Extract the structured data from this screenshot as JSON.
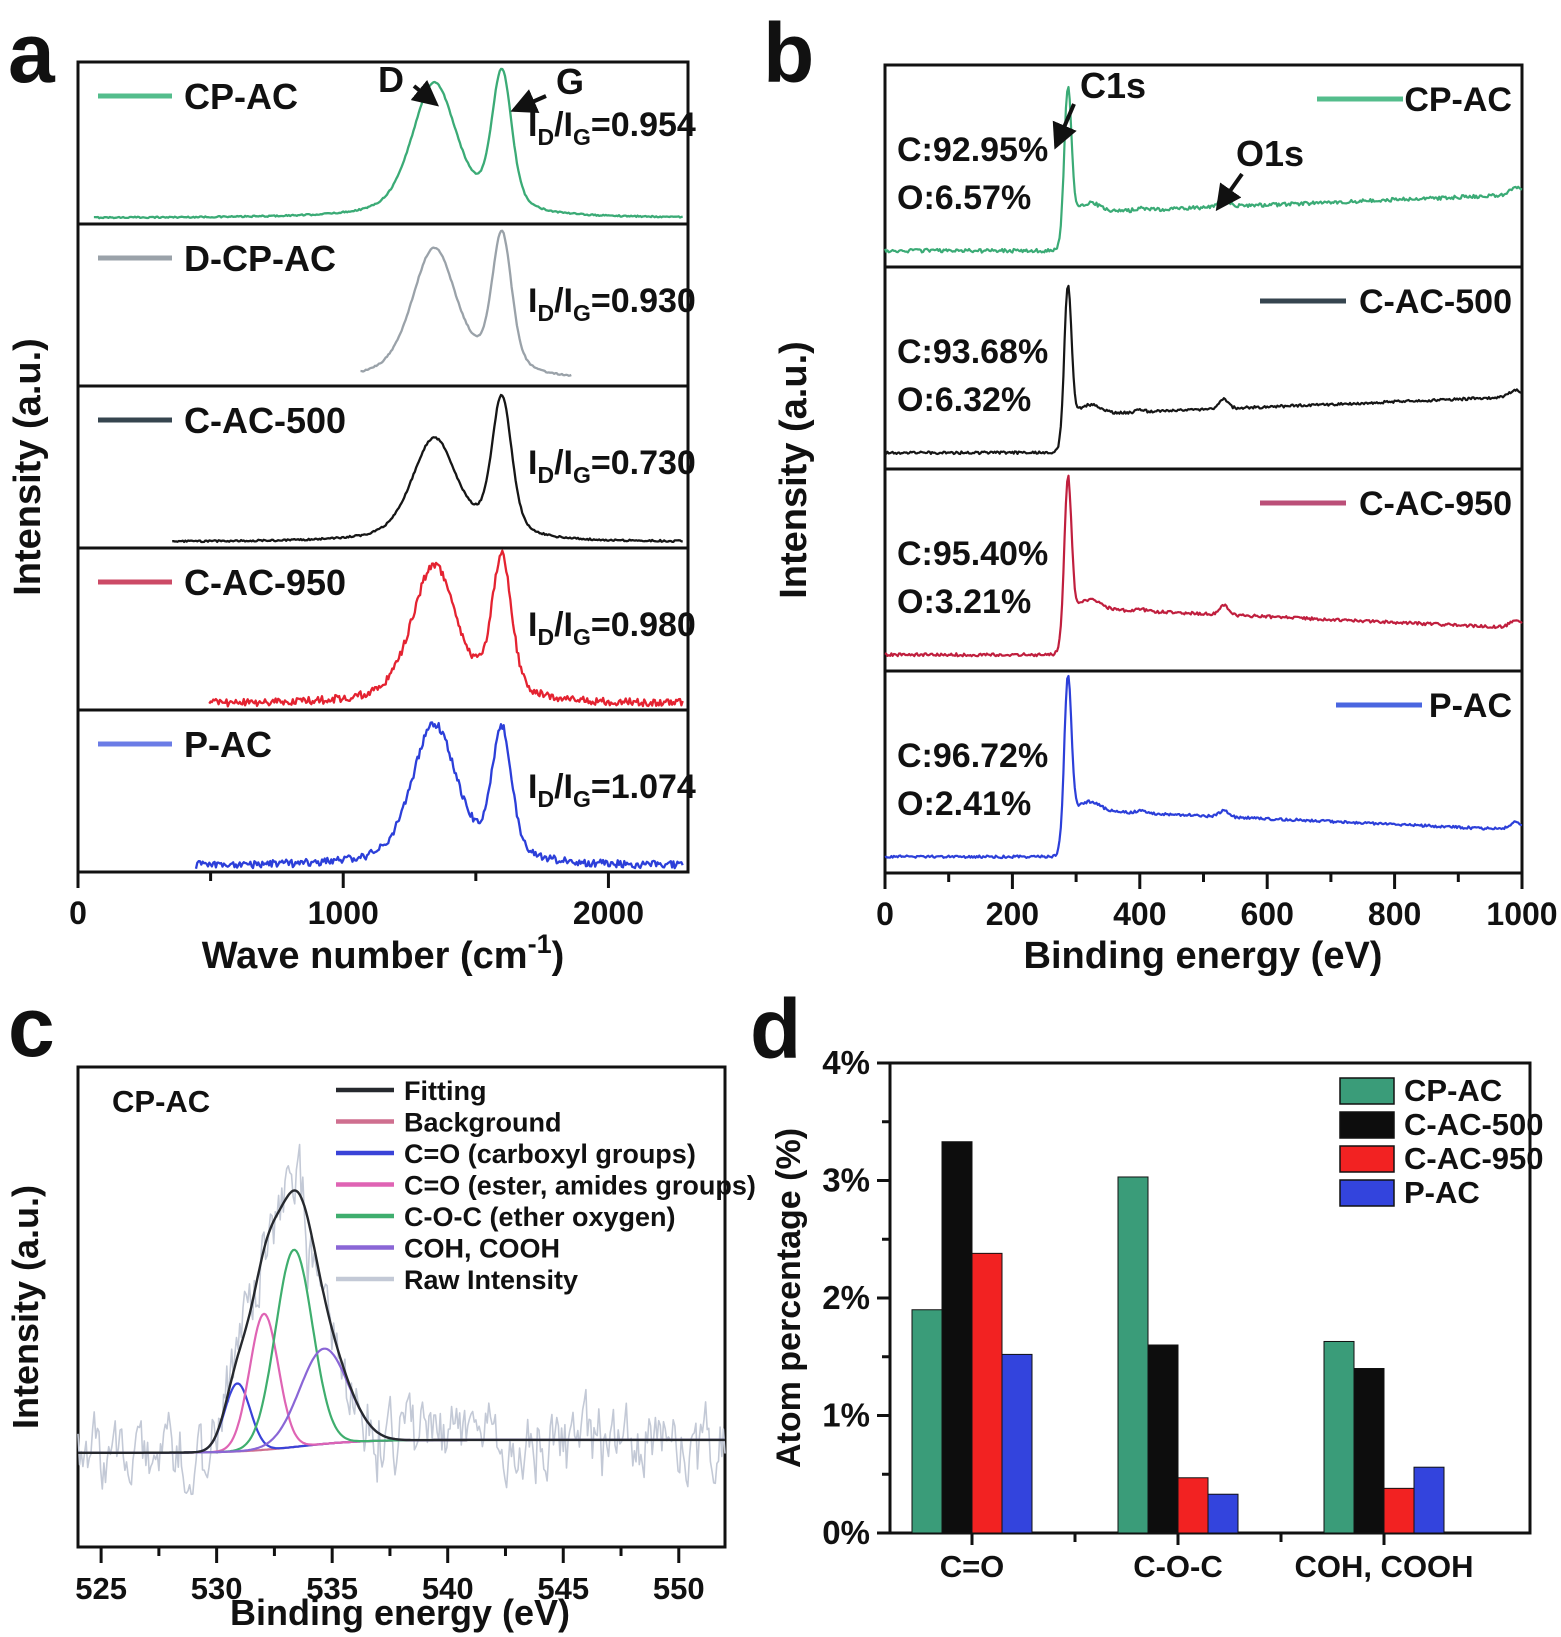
{
  "panel_letters": {
    "a": "a",
    "b": "b",
    "c": "c",
    "d": "d"
  },
  "chart_data": [
    {
      "id": "a",
      "type": "line",
      "subtype": "stacked-raman-spectra",
      "xlabel": "Wave number (cm⁻¹)",
      "xlabel_parts": {
        "main": "Wave number (cm",
        "sup": "-1",
        "end": ")"
      },
      "ylabel": "Intensity (a.u.)",
      "xlim": [
        0,
        2300
      ],
      "xticks": [
        0,
        1000,
        2000
      ],
      "xminor": [
        500,
        1500
      ],
      "d_peak_center": 1343,
      "g_peak_center": 1598,
      "annotations": [
        {
          "text": "D"
        },
        {
          "text": "G"
        }
      ],
      "ratio_template": {
        "pre": "I",
        "sub_d": "D",
        "mid": "/I",
        "sub_g": "G",
        "eq": "="
      },
      "series": [
        {
          "label": "CP-AC",
          "color": "#3bab76",
          "swatch": "#54bd8c",
          "ratio": "0.954",
          "d_height": 0.954,
          "g_height": 1.0,
          "noise": 0.005,
          "domain": [
            60,
            2280
          ]
        },
        {
          "label": "D-CP-AC",
          "color": "#9aa2a9",
          "swatch": "#9aa2a9",
          "ratio": "0.930",
          "d_height": 0.93,
          "g_height": 1.0,
          "noise": 0.005,
          "domain": [
            1065,
            1860
          ]
        },
        {
          "label": "C-AC-500",
          "color": "#161616",
          "swatch": "#36454f",
          "ratio": "0.730",
          "d_height": 0.73,
          "g_height": 1.0,
          "noise": 0.006,
          "domain": [
            355,
            2280
          ]
        },
        {
          "label": "C-AC-950",
          "color": "#e42331",
          "swatch": "#cc4a66",
          "ratio": "0.980",
          "d_height": 0.98,
          "g_height": 1.0,
          "noise": 0.028,
          "domain": [
            495,
            2280
          ]
        },
        {
          "label": "P-AC",
          "color": "#2c3fd9",
          "swatch": "#6b7ce6",
          "ratio": "1.074",
          "d_height": 1.0,
          "g_height": 0.931,
          "noise": 0.028,
          "domain": [
            445,
            2280
          ]
        }
      ]
    },
    {
      "id": "b",
      "type": "line",
      "subtype": "stacked-xps-survey",
      "xlabel": "Binding energy (eV)",
      "ylabel": "Intensity (a.u.)",
      "xlim": [
        0,
        1000
      ],
      "xticks": [
        0,
        200,
        400,
        600,
        800,
        1000
      ],
      "xminor": [
        100,
        300,
        500,
        700,
        900
      ],
      "annotations": [
        {
          "text": "C1s",
          "x": 285
        },
        {
          "text": "O1s",
          "x": 532
        }
      ],
      "series": [
        {
          "label": "CP-AC",
          "color": "#3bab76",
          "swatch": "#54bd8c",
          "c_pct": "C:92.95%",
          "o_pct": "O:6.57%",
          "trend": "rise",
          "peak_h": 0.72,
          "o1s_h": 0.055,
          "noise": 0.01
        },
        {
          "label": "C-AC-500",
          "color": "#161616",
          "swatch": "#36454f",
          "c_pct": "C:93.68%",
          "o_pct": "O:6.32%",
          "trend": "rise",
          "peak_h": 0.74,
          "o1s_h": 0.05,
          "noise": 0.007
        },
        {
          "label": "C-AC-950",
          "color": "#c01f3e",
          "swatch": "#bb4f78",
          "c_pct": "C:95.40%",
          "o_pct": "O:3.21%",
          "trend": "fall",
          "peak_h": 0.76,
          "o1s_h": 0.05,
          "noise": 0.008
        },
        {
          "label": "P-AC",
          "color": "#2c3fd9",
          "swatch": "#4a66e0",
          "c_pct": "C:96.72%",
          "o_pct": "O:2.41%",
          "trend": "fall",
          "peak_h": 0.78,
          "o1s_h": 0.035,
          "noise": 0.007
        }
      ]
    },
    {
      "id": "c",
      "type": "line",
      "subtype": "xps-o1s-fit",
      "sample_label": "CP-AC",
      "xlabel": "Binding energy (eV)",
      "ylabel": "Intensity (a.u.)",
      "xlim": [
        524,
        552
      ],
      "xticks": [
        525,
        530,
        535,
        540,
        545,
        550
      ],
      "xminor": [
        527.5,
        532.5,
        537.5,
        542.5,
        547.5
      ],
      "components": [
        {
          "label": "Fitting",
          "color": "#26292e",
          "role": "fit"
        },
        {
          "label": "Background",
          "color": "#cf6f8f",
          "role": "background"
        },
        {
          "label": "C=O (carboxyl groups)",
          "color": "#3a43d8",
          "role": "peak",
          "center": 530.9,
          "sigma": 0.55,
          "amplitude": 0.2
        },
        {
          "label": "C=O (ester, amides groups)",
          "color": "#df64b4",
          "role": "peak",
          "center": 532.05,
          "sigma": 0.62,
          "amplitude": 0.4
        },
        {
          "label": "C-O-C (ether oxygen)",
          "color": "#3fae6e",
          "role": "peak",
          "center": 533.35,
          "sigma": 0.8,
          "amplitude": 0.58
        },
        {
          "label": "COH, COOH",
          "color": "#8a66d6",
          "role": "peak",
          "center": 534.65,
          "sigma": 1.05,
          "amplitude": 0.28
        },
        {
          "label": "Raw Intensity",
          "color": "#c3c9d6",
          "role": "raw"
        }
      ]
    },
    {
      "id": "d",
      "type": "bar",
      "categories": [
        "C=O",
        "C-O-C",
        "COH, COOH"
      ],
      "series": [
        {
          "name": "CP-AC",
          "color": "#3a9c79",
          "values": [
            1.9,
            3.03,
            1.63
          ]
        },
        {
          "name": "C-AC-500",
          "color": "#0d0d0d",
          "values": [
            3.33,
            1.6,
            1.4
          ]
        },
        {
          "name": "C-AC-950",
          "color": "#f22222",
          "values": [
            2.38,
            0.47,
            0.38
          ]
        },
        {
          "name": "P-AC",
          "color": "#3344dd",
          "values": [
            1.52,
            0.33,
            0.56
          ]
        }
      ],
      "ylabel": "Atom percentage (%)",
      "ylim": [
        0,
        4
      ],
      "yticks": [
        "0%",
        "1%",
        "2%",
        "3%",
        "4%"
      ],
      "legend_position": "top-right",
      "grid": false
    }
  ]
}
